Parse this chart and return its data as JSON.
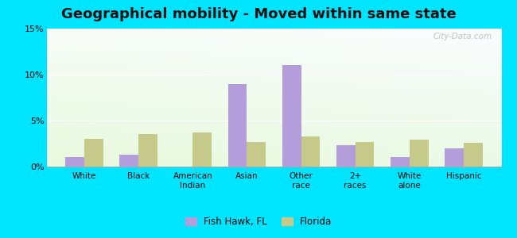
{
  "title": "Geographical mobility - Moved within same state",
  "categories": [
    "White",
    "Black",
    "American\nIndian",
    "Asian",
    "Other\nrace",
    "2+\nraces",
    "White\nalone",
    "Hispanic"
  ],
  "fish_hawk": [
    1.0,
    1.3,
    0.0,
    9.0,
    11.0,
    2.3,
    1.0,
    2.0
  ],
  "florida": [
    3.0,
    3.5,
    3.7,
    2.7,
    3.3,
    2.7,
    2.9,
    2.6
  ],
  "fish_hawk_color": "#b39ddb",
  "florida_color": "#c5c98a",
  "outer_bg": "#00e5ff",
  "ylim": [
    0,
    15
  ],
  "yticks": [
    0,
    5,
    10,
    15
  ],
  "ytick_labels": [
    "0%",
    "5%",
    "10%",
    "15%"
  ],
  "legend_fish_hawk": "Fish Hawk, FL",
  "legend_florida": "Florida",
  "title_fontsize": 13,
  "bar_width": 0.35,
  "watermark": "City-Data.com"
}
